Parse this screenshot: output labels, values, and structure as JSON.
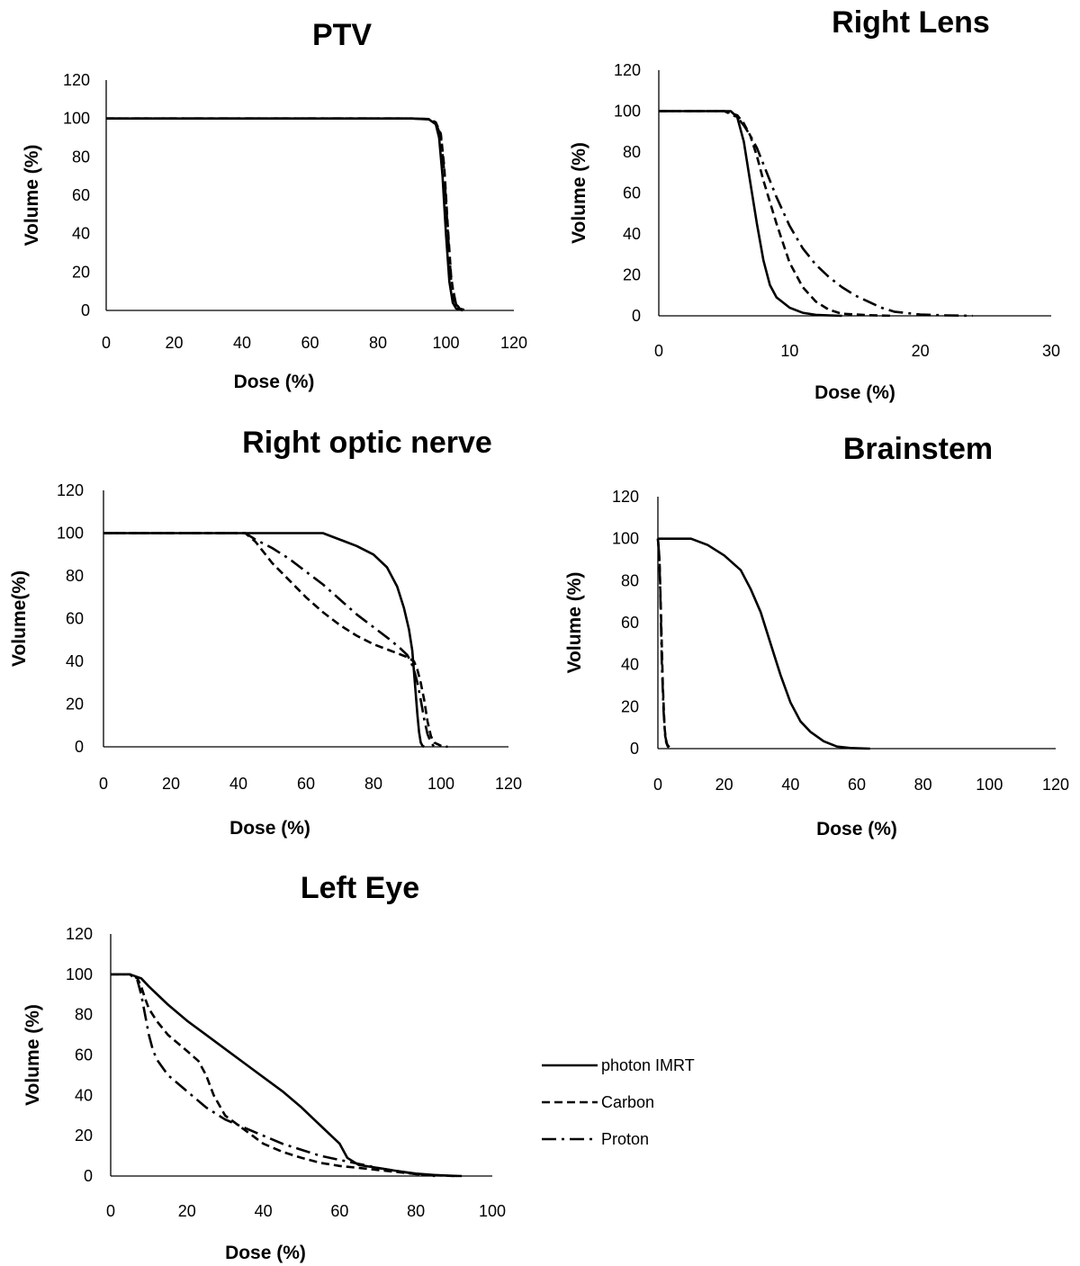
{
  "chart_data": [
    {
      "type": "line",
      "title": "PTV",
      "xlabel": "Dose (%)",
      "ylabel": "Volume (%)",
      "xlim": [
        0,
        120
      ],
      "ylim": [
        0,
        120
      ],
      "xticks": [
        "0",
        "20",
        "40",
        "60",
        "80",
        "100",
        "120"
      ],
      "yticks": [
        "0",
        "20",
        "40",
        "60",
        "80",
        "100",
        "120"
      ],
      "grid": false,
      "series": [
        {
          "style": "solid",
          "x": [
            0,
            90,
            95,
            97,
            98,
            99,
            100,
            101,
            102,
            103,
            105
          ],
          "y": [
            100,
            100,
            99.5,
            97,
            90,
            70,
            40,
            15,
            4,
            1,
            0
          ]
        },
        {
          "style": "dashed",
          "x": [
            0,
            90,
            95,
            97,
            98.5,
            99.5,
            100.5,
            101.5,
            102.5,
            104,
            106
          ],
          "y": [
            100,
            100,
            99.7,
            98,
            92,
            75,
            45,
            18,
            5,
            1,
            0
          ]
        },
        {
          "style": "dashdot",
          "x": [
            0,
            90,
            95,
            97,
            98.5,
            99.5,
            100.5,
            101.5,
            103,
            105
          ],
          "y": [
            100,
            100,
            99.7,
            97.5,
            91,
            72,
            42,
            16,
            3,
            0
          ]
        }
      ]
    },
    {
      "type": "line",
      "title": "Right Lens",
      "xlabel": "Dose (%)",
      "ylabel": "Volume (%)",
      "xlim": [
        0,
        30
      ],
      "ylim": [
        0,
        120
      ],
      "xticks": [
        "0",
        "10",
        "20",
        "30"
      ],
      "yticks": [
        "0",
        "20",
        "40",
        "60",
        "80",
        "100",
        "120"
      ],
      "grid": false,
      "series": [
        {
          "style": "solid",
          "x": [
            0,
            5.5,
            6,
            6.5,
            7,
            7.5,
            8,
            8.5,
            9,
            10,
            11,
            12,
            13,
            14
          ],
          "y": [
            100,
            100,
            97,
            85,
            65,
            45,
            27,
            15,
            9,
            4,
            1.5,
            0.5,
            0.2,
            0
          ]
        },
        {
          "style": "dashed",
          "x": [
            0,
            5,
            6,
            6.5,
            7,
            7.5,
            8,
            9,
            10,
            11,
            12,
            13,
            14,
            16,
            18
          ],
          "y": [
            100,
            100,
            98,
            94,
            88,
            78,
            66,
            45,
            26,
            14,
            7,
            3,
            1,
            0.3,
            0
          ]
        },
        {
          "style": "dashdot",
          "x": [
            0,
            5,
            6,
            6.5,
            7,
            7.5,
            8,
            9,
            10,
            11,
            12,
            13,
            14,
            15,
            16,
            17,
            18,
            20,
            22,
            24
          ],
          "y": [
            100,
            100,
            97,
            93,
            88,
            82,
            74,
            58,
            44,
            33,
            25,
            19,
            14,
            10,
            7,
            4,
            2,
            0.6,
            0.2,
            0
          ]
        }
      ]
    },
    {
      "type": "line",
      "title": "Right optic nerve",
      "xlabel": "Dose (%)",
      "ylabel": "Volume(%)",
      "xlim": [
        0,
        120
      ],
      "ylim": [
        0,
        120
      ],
      "xticks": [
        "0",
        "20",
        "40",
        "60",
        "80",
        "100",
        "120"
      ],
      "yticks": [
        "0",
        "20",
        "40",
        "60",
        "80",
        "100",
        "120"
      ],
      "grid": false,
      "series": [
        {
          "style": "solid",
          "x": [
            0,
            65,
            70,
            75,
            80,
            84,
            87,
            89,
            90.5,
            91.5,
            92,
            92.5,
            93,
            93.5,
            94,
            94.5,
            95
          ],
          "y": [
            100,
            100,
            97,
            94,
            90,
            84,
            75,
            65,
            55,
            45,
            35,
            25,
            15,
            7,
            2,
            0.5,
            0
          ]
        },
        {
          "style": "dashed",
          "x": [
            0,
            42,
            45,
            50,
            55,
            60,
            65,
            70,
            75,
            80,
            85,
            90,
            92,
            93,
            94,
            95,
            96,
            97,
            98,
            100,
            102
          ],
          "y": [
            100,
            100,
            96,
            86,
            78,
            70,
            63,
            57,
            52,
            48,
            45,
            42,
            40,
            36,
            30,
            22,
            12,
            5,
            2,
            0.5,
            0
          ]
        },
        {
          "style": "dashdot",
          "x": [
            0,
            42,
            45,
            50,
            55,
            60,
            65,
            70,
            75,
            80,
            85,
            88,
            90,
            91,
            92,
            93,
            94,
            95,
            96,
            97,
            98
          ],
          "y": [
            100,
            100,
            97,
            93,
            88,
            82,
            76,
            69,
            62,
            56,
            50,
            46,
            43,
            40,
            36,
            30,
            22,
            13,
            6,
            2,
            0
          ]
        }
      ]
    },
    {
      "type": "line",
      "title": "Brainstem",
      "xlabel": "Dose (%)",
      "ylabel": "Volume (%)",
      "xlim": [
        0,
        120
      ],
      "ylim": [
        0,
        120
      ],
      "xticks": [
        "0",
        "20",
        "40",
        "60",
        "80",
        "100",
        "120"
      ],
      "yticks": [
        "0",
        "20",
        "40",
        "60",
        "80",
        "100",
        "120"
      ],
      "grid": false,
      "series": [
        {
          "style": "solid",
          "x": [
            0,
            5,
            10,
            15,
            20,
            25,
            28,
            31,
            34,
            37,
            40,
            43,
            46,
            50,
            54,
            58,
            62,
            64
          ],
          "y": [
            100,
            100,
            100,
            97,
            92,
            85,
            76,
            65,
            50,
            35,
            22,
            13,
            8,
            3.5,
            1,
            0.3,
            0.1,
            0
          ]
        },
        {
          "style": "dashed",
          "x": [
            0,
            0.5,
            1,
            1.5,
            2,
            2.5,
            3,
            4
          ],
          "y": [
            100,
            90,
            60,
            30,
            10,
            3,
            1,
            0
          ]
        },
        {
          "style": "dashdot",
          "x": [
            0,
            0.4,
            0.8,
            1.2,
            1.7,
            2.2,
            2.8,
            3.5,
            5
          ],
          "y": [
            100,
            92,
            70,
            40,
            18,
            6,
            2,
            0.5,
            0
          ]
        }
      ]
    },
    {
      "type": "line",
      "title": "Left Eye",
      "xlabel": "Dose (%)",
      "ylabel": "Volume (%)",
      "xlim": [
        0,
        100
      ],
      "ylim": [
        0,
        120
      ],
      "xticks": [
        "0",
        "20",
        "40",
        "60",
        "80",
        "100"
      ],
      "yticks": [
        "0",
        "20",
        "40",
        "60",
        "80",
        "100",
        "120"
      ],
      "grid": false,
      "legend": "right",
      "series": [
        {
          "name": "photon IMRT",
          "style": "solid",
          "x": [
            0,
            5,
            8,
            10,
            15,
            20,
            25,
            30,
            35,
            40,
            45,
            50,
            55,
            60,
            62,
            65,
            70,
            75,
            80,
            85,
            90,
            92
          ],
          "y": [
            100,
            100,
            98,
            94,
            85,
            77,
            70,
            63,
            56,
            49,
            42,
            34,
            25,
            16,
            9,
            5.5,
            4,
            2.5,
            1.2,
            0.5,
            0.1,
            0
          ]
        },
        {
          "name": "Carbon",
          "style": "dashed",
          "x": [
            0,
            5,
            7,
            8,
            9,
            10,
            12,
            15,
            20,
            23,
            25,
            27,
            30,
            35,
            40,
            45,
            50,
            55,
            60,
            65,
            70,
            75,
            80,
            85,
            90
          ],
          "y": [
            100,
            100,
            98,
            94,
            88,
            83,
            77,
            70,
            62,
            57,
            50,
            40,
            30,
            23,
            16,
            12,
            9,
            6.5,
            5,
            4,
            3,
            2,
            1,
            0.4,
            0
          ]
        },
        {
          "name": "Proton",
          "style": "dashdot",
          "x": [
            0,
            5,
            7,
            8,
            9,
            10,
            11,
            12,
            15,
            20,
            25,
            30,
            35,
            40,
            45,
            50,
            55,
            60,
            65,
            70,
            75,
            80,
            85
          ],
          "y": [
            100,
            100,
            97,
            90,
            80,
            70,
            63,
            58,
            50,
            42,
            34,
            28,
            24,
            20,
            16,
            13,
            10,
            8,
            6,
            4,
            2.5,
            1,
            0
          ]
        }
      ]
    }
  ]
}
